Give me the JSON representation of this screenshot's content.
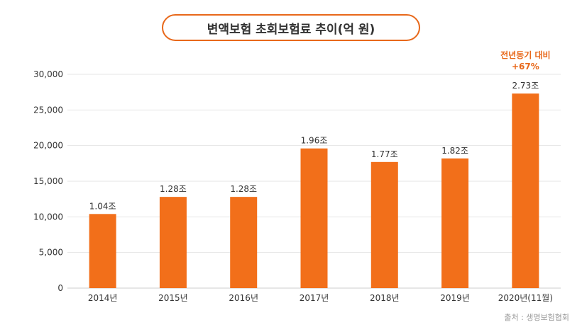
{
  "chart_data": {
    "type": "bar",
    "title": "변액보험 초회보험료 추이(억 원)",
    "categories": [
      "2014년",
      "2015년",
      "2016년",
      "2017년",
      "2018년",
      "2019년",
      "2020년(11월)"
    ],
    "values": [
      10400,
      12800,
      12800,
      19600,
      17700,
      18200,
      27300
    ],
    "data_labels": [
      "1.04조",
      "1.28조",
      "1.28조",
      "1.96조",
      "1.77조",
      "1.82조",
      "2.73조"
    ],
    "ylim": [
      0,
      30000
    ],
    "yticks": [
      0,
      5000,
      10000,
      15000,
      20000,
      25000,
      30000
    ],
    "ytick_labels": [
      "0",
      "5,000",
      "10,000",
      "15,000",
      "20,000",
      "25,000",
      "30,000"
    ],
    "xlabel": "",
    "ylabel": "",
    "grid": true,
    "bar_color": "#f26f1a",
    "annotation": {
      "line1": "전년동기 대비",
      "line2": "+67%",
      "color": "#e8681a"
    }
  },
  "source": "출처 : 생명보험협회"
}
